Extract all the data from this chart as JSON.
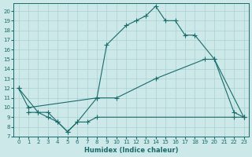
{
  "xlabel": "Humidex (Indice chaleur)",
  "xlim": [
    -0.5,
    23.5
  ],
  "ylim": [
    7,
    20.8
  ],
  "yticks": [
    7,
    8,
    9,
    10,
    11,
    12,
    13,
    14,
    15,
    16,
    17,
    18,
    19,
    20
  ],
  "xticks": [
    0,
    1,
    2,
    3,
    4,
    5,
    6,
    7,
    8,
    9,
    10,
    11,
    12,
    13,
    14,
    15,
    16,
    17,
    18,
    19,
    20,
    21,
    22,
    23
  ],
  "background_color": "#cce8e8",
  "line_color": "#1a6b6b",
  "grid_color": "#aad0d0",
  "line1_x": [
    0,
    2,
    3,
    4,
    5,
    6,
    8,
    9,
    11,
    12,
    13,
    14,
    15,
    16,
    17,
    18,
    20,
    23
  ],
  "line1_y": [
    12,
    9.5,
    9.5,
    8.5,
    7.5,
    8.5,
    11,
    16.5,
    18.5,
    19,
    19.5,
    20.5,
    19,
    19,
    17.5,
    17.5,
    15,
    9
  ],
  "line2_x": [
    0,
    1,
    8,
    10,
    14,
    19,
    20,
    22,
    23
  ],
  "line2_y": [
    12,
    10,
    11,
    11,
    13,
    15,
    15,
    9.5,
    9
  ],
  "line3_x": [
    1,
    2,
    3,
    4,
    5,
    6,
    7,
    8,
    22,
    23
  ],
  "line3_y": [
    9.5,
    9.5,
    9,
    8.5,
    7.5,
    8.5,
    8.5,
    9,
    9,
    9
  ]
}
